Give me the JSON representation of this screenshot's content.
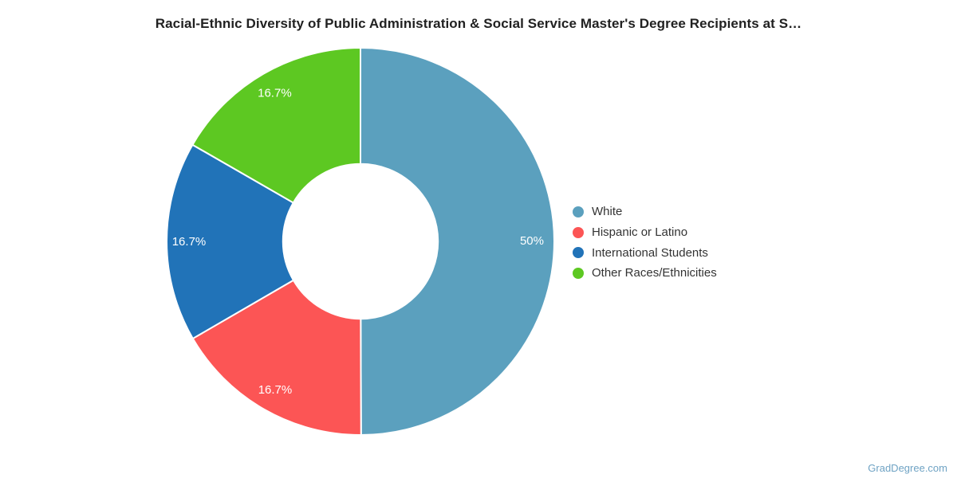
{
  "title": "Racial-Ethnic Diversity of Public Administration & Social Service Master's Degree Recipients at S…",
  "watermark": "GradDegree.com",
  "legend": {
    "position": "right",
    "items": [
      {
        "label": "White",
        "color": "#5BA0BE"
      },
      {
        "label": "Hispanic or Latino",
        "color": "#FC5555"
      },
      {
        "label": "International Students",
        "color": "#2173B8"
      },
      {
        "label": "Other Races/Ethnicities",
        "color": "#5DC822"
      }
    ]
  },
  "chart_data": {
    "type": "pie",
    "subtype": "donut",
    "title": "Racial-Ethnic Diversity of Public Administration & Social Service Master's Degree Recipients at S…",
    "categories": [
      "White",
      "Hispanic or Latino",
      "International Students",
      "Other Races/Ethnicities"
    ],
    "values": [
      50,
      16.7,
      16.7,
      16.7
    ],
    "slice_labels": [
      "50%",
      "16.7%",
      "16.7%",
      "16.7%"
    ],
    "colors": [
      "#5BA0BE",
      "#FC5555",
      "#2173B8",
      "#5DC822"
    ],
    "slice_label_color": "#FFFFFF",
    "start_angle_deg": 0,
    "direction": "clockwise",
    "inner_radius_ratio": 0.4,
    "legend_position": "right",
    "background": "#FFFFFF"
  }
}
